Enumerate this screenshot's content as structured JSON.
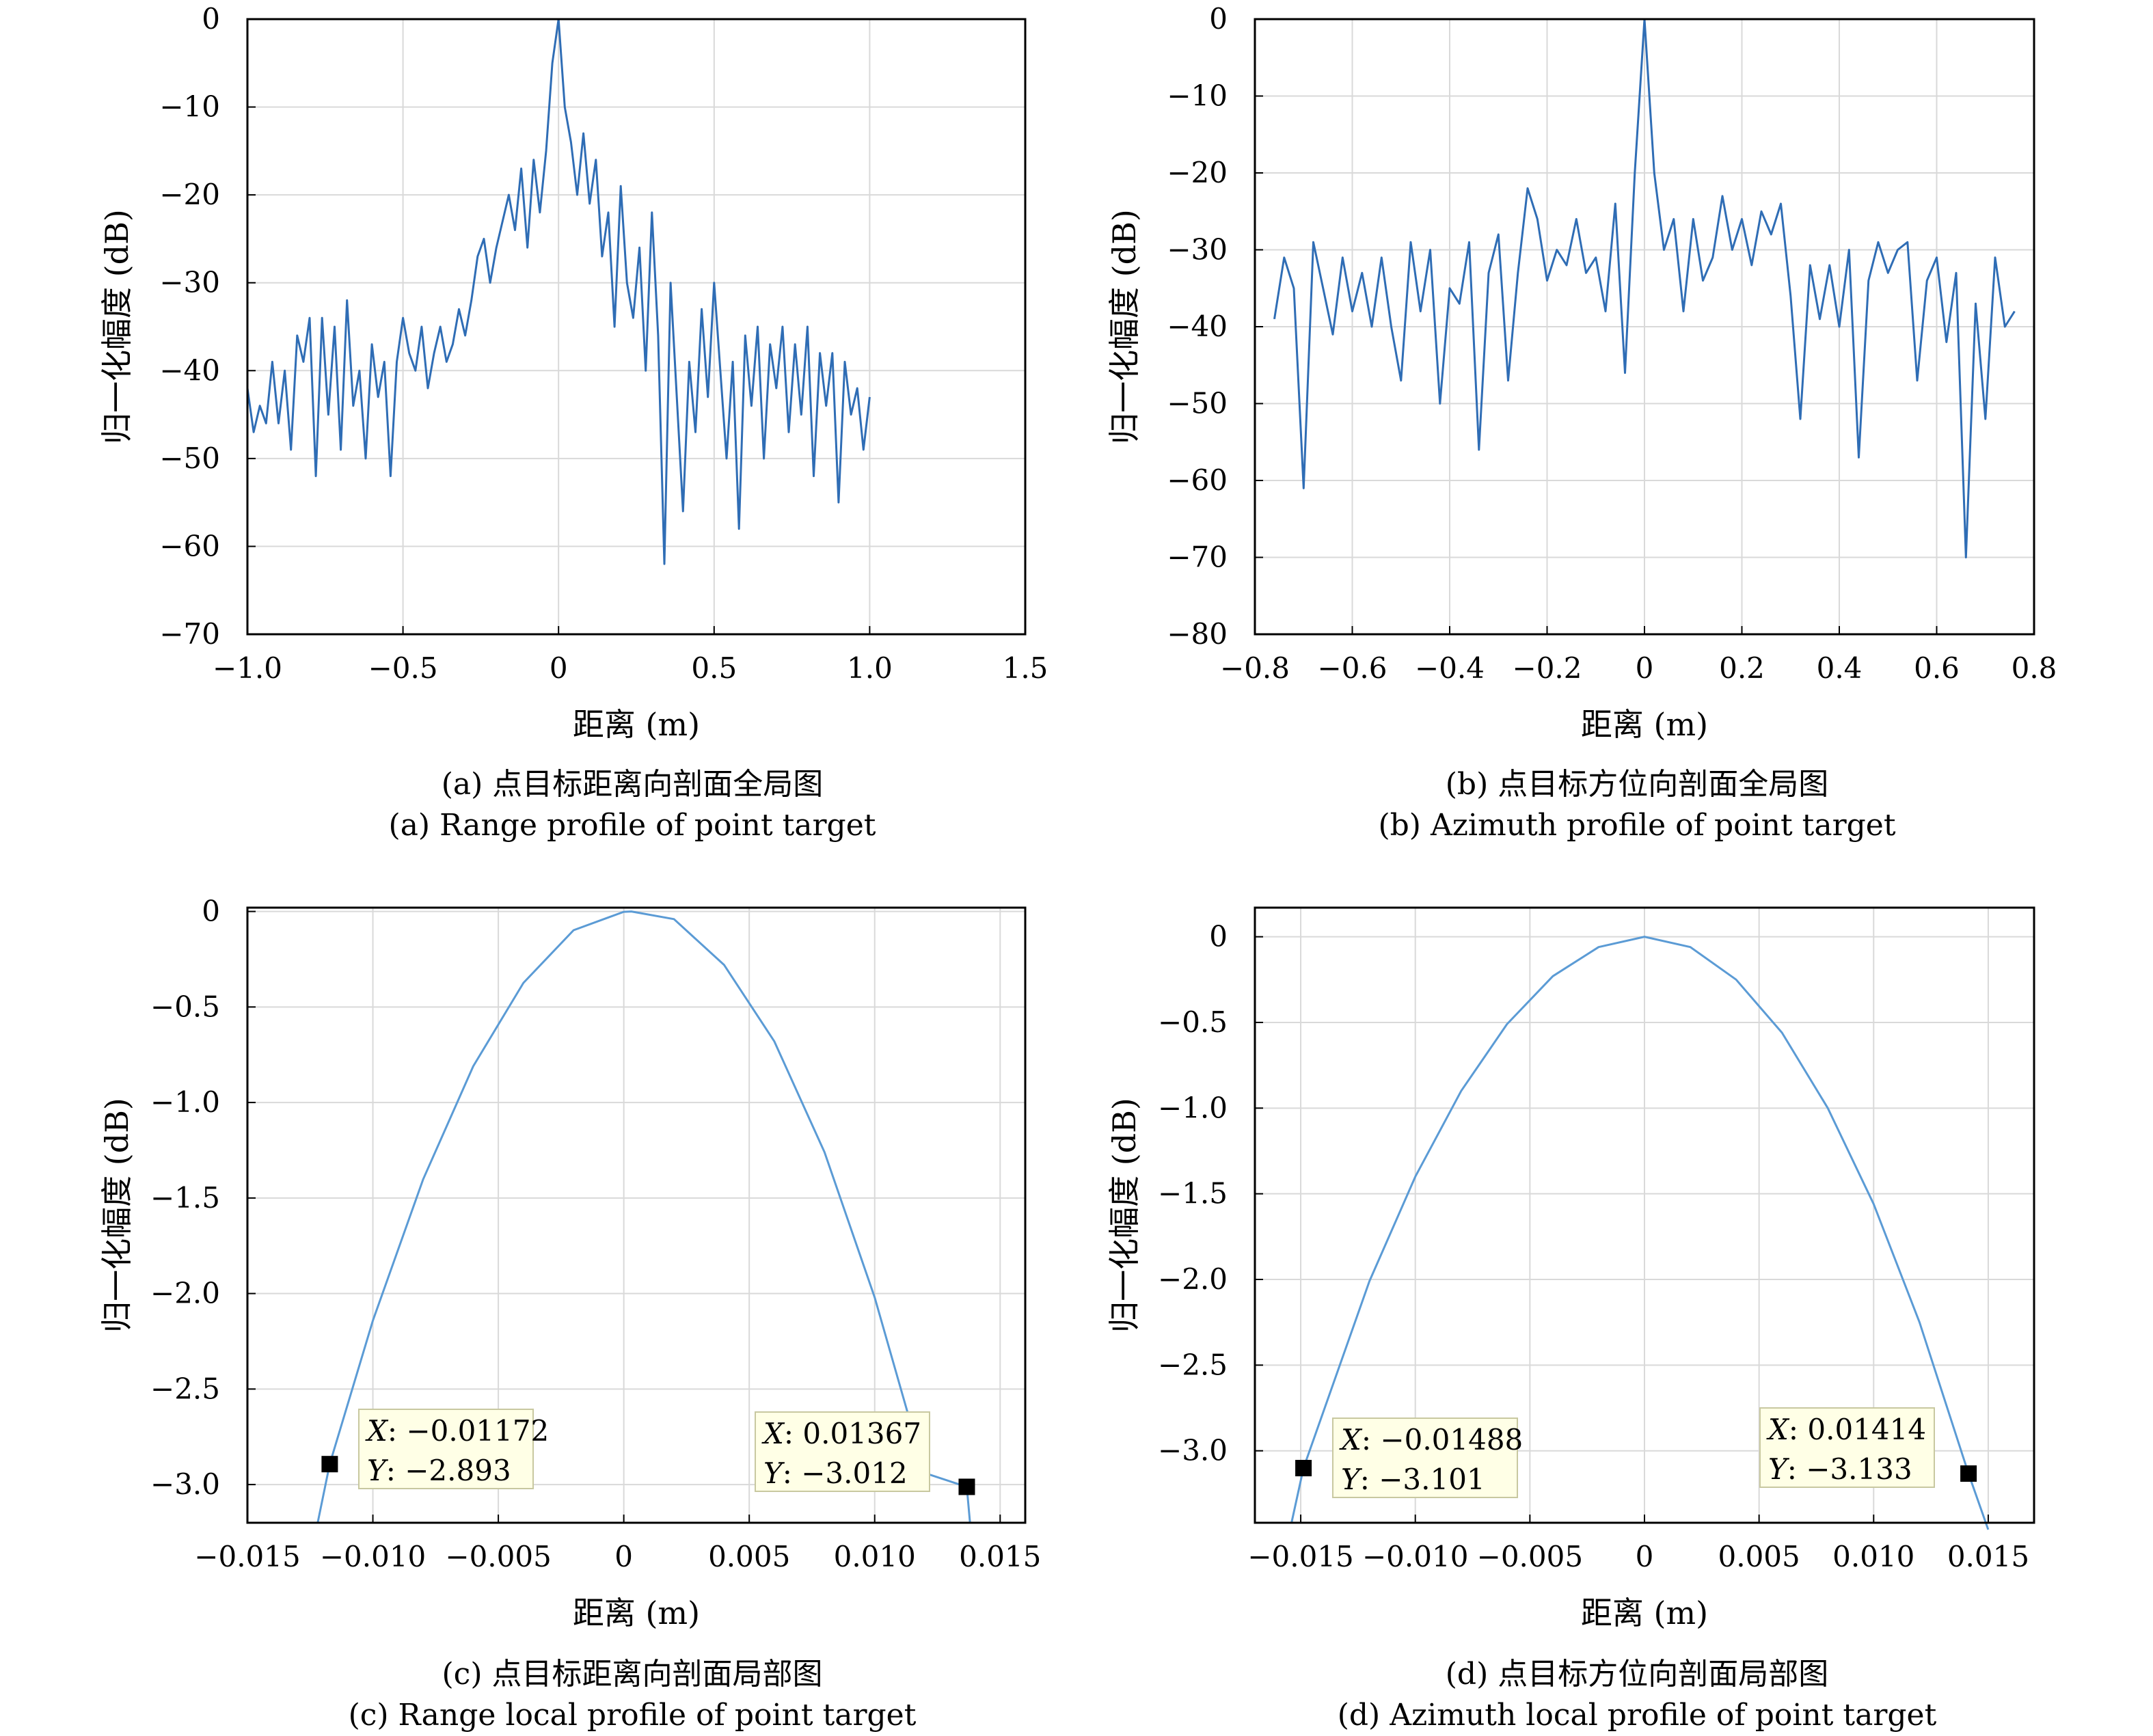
{
  "chart_data": [
    {
      "type": "line",
      "xlabel": "距离 (m)",
      "ylabel": "归一化幅度 (dB)",
      "xlim": [
        -1.0,
        1.5
      ],
      "ylim": [
        -70,
        0
      ],
      "xticks": [
        -1.0,
        -0.5,
        0,
        0.5,
        1.0,
        1.5
      ],
      "xtick_labels": [
        "−1.0",
        "−0.5",
        "0",
        "0.5",
        "1.0",
        "1.5"
      ],
      "yticks": [
        0,
        -10,
        -20,
        -30,
        -40,
        -50,
        -60,
        -70
      ],
      "ytick_labels": [
        "0",
        "−10",
        "−20",
        "−30",
        "−40",
        "−50",
        "−60",
        "−70"
      ],
      "grid": true,
      "caption_cn": "(a) 点目标距离向剖面全局图",
      "caption_en": "(a) Range profile of point target",
      "series": [
        {
          "color": "#2f6db5",
          "x": [
            -1.0,
            -0.98,
            -0.96,
            -0.94,
            -0.92,
            -0.9,
            -0.88,
            -0.86,
            -0.84,
            -0.82,
            -0.8,
            -0.78,
            -0.76,
            -0.74,
            -0.72,
            -0.7,
            -0.68,
            -0.66,
            -0.64,
            -0.62,
            -0.6,
            -0.58,
            -0.56,
            -0.54,
            -0.52,
            -0.5,
            -0.48,
            -0.46,
            -0.44,
            -0.42,
            -0.4,
            -0.38,
            -0.36,
            -0.34,
            -0.32,
            -0.3,
            -0.28,
            -0.26,
            -0.24,
            -0.22,
            -0.2,
            -0.18,
            -0.16,
            -0.14,
            -0.12,
            -0.1,
            -0.08,
            -0.06,
            -0.04,
            -0.02,
            0,
            0.02,
            0.04,
            0.06,
            0.08,
            0.1,
            0.12,
            0.14,
            0.16,
            0.18,
            0.2,
            0.22,
            0.24,
            0.26,
            0.28,
            0.3,
            0.32,
            0.34,
            0.36,
            0.38,
            0.4,
            0.42,
            0.44,
            0.46,
            0.48,
            0.5,
            0.52,
            0.54,
            0.56,
            0.58,
            0.6,
            0.62,
            0.64,
            0.66,
            0.68,
            0.7,
            0.72,
            0.74,
            0.76,
            0.78,
            0.8,
            0.82,
            0.84,
            0.86,
            0.88,
            0.9,
            0.92,
            0.94,
            0.96,
            0.98,
            1.0
          ],
          "y": [
            -42,
            -47,
            -44,
            -46,
            -39,
            -46,
            -40,
            -49,
            -36,
            -39,
            -34,
            -52,
            -34,
            -45,
            -35,
            -49,
            -32,
            -44,
            -40,
            -50,
            -37,
            -43,
            -39,
            -52,
            -39,
            -34,
            -38,
            -40,
            -35,
            -42,
            -38,
            -35,
            -39,
            -37,
            -33,
            -36,
            -32,
            -27,
            -25,
            -30,
            -26,
            -23,
            -20,
            -24,
            -17,
            -26,
            -16,
            -22,
            -15,
            -5,
            0,
            -10,
            -14,
            -20,
            -13,
            -21,
            -16,
            -27,
            -22,
            -35,
            -19,
            -30,
            -34,
            -26,
            -40,
            -22,
            -36,
            -62,
            -30,
            -43,
            -56,
            -39,
            -47,
            -33,
            -43,
            -30,
            -40,
            -50,
            -39,
            -58,
            -36,
            -44,
            -35,
            -50,
            -37,
            -42,
            -35,
            -47,
            -37,
            -45,
            -35,
            -52,
            -38,
            -44,
            -38,
            -55,
            -39,
            -45,
            -42,
            -49,
            -43
          ]
        }
      ]
    },
    {
      "type": "line",
      "xlabel": "距离 (m)",
      "ylabel": "归一化幅度 (dB)",
      "xlim": [
        -0.8,
        0.8
      ],
      "ylim": [
        -80,
        0
      ],
      "xticks": [
        -0.8,
        -0.6,
        -0.4,
        -0.2,
        0,
        0.2,
        0.4,
        0.6,
        0.8
      ],
      "xtick_labels": [
        "−0.8",
        "−0.6",
        "−0.4",
        "−0.2",
        "0",
        "0.2",
        "0.4",
        "0.6",
        "0.8"
      ],
      "yticks": [
        0,
        -10,
        -20,
        -30,
        -40,
        -50,
        -60,
        -70,
        -80
      ],
      "ytick_labels": [
        "0",
        "−10",
        "−20",
        "−30",
        "−40",
        "−50",
        "−60",
        "−70",
        "−80"
      ],
      "grid": true,
      "caption_cn": "(b) 点目标方位向剖面全局图",
      "caption_en": "(b) Azimuth profile of point target",
      "series": [
        {
          "color": "#2f6db5",
          "x": [
            -0.76,
            -0.74,
            -0.72,
            -0.7,
            -0.68,
            -0.66,
            -0.64,
            -0.62,
            -0.6,
            -0.58,
            -0.56,
            -0.54,
            -0.52,
            -0.5,
            -0.48,
            -0.46,
            -0.44,
            -0.42,
            -0.4,
            -0.38,
            -0.36,
            -0.34,
            -0.32,
            -0.3,
            -0.28,
            -0.26,
            -0.24,
            -0.22,
            -0.2,
            -0.18,
            -0.16,
            -0.14,
            -0.12,
            -0.1,
            -0.08,
            -0.06,
            -0.04,
            -0.02,
            0,
            0.02,
            0.04,
            0.06,
            0.08,
            0.1,
            0.12,
            0.14,
            0.16,
            0.18,
            0.2,
            0.22,
            0.24,
            0.26,
            0.28,
            0.3,
            0.32,
            0.34,
            0.36,
            0.38,
            0.4,
            0.42,
            0.44,
            0.46,
            0.48,
            0.5,
            0.52,
            0.54,
            0.56,
            0.58,
            0.6,
            0.62,
            0.64,
            0.66,
            0.68,
            0.7,
            0.72,
            0.74,
            0.76
          ],
          "y": [
            -39,
            -31,
            -35,
            -61,
            -29,
            -35,
            -41,
            -31,
            -38,
            -33,
            -40,
            -31,
            -40,
            -47,
            -29,
            -38,
            -30,
            -50,
            -35,
            -37,
            -29,
            -56,
            -33,
            -28,
            -47,
            -33,
            -22,
            -26,
            -34,
            -30,
            -32,
            -26,
            -33,
            -31,
            -38,
            -24,
            -46,
            -20,
            0,
            -20,
            -30,
            -26,
            -38,
            -26,
            -34,
            -31,
            -23,
            -30,
            -26,
            -32,
            -25,
            -28,
            -24,
            -36,
            -52,
            -32,
            -39,
            -32,
            -40,
            -30,
            -57,
            -34,
            -29,
            -33,
            -30,
            -29,
            -47,
            -34,
            -31,
            -42,
            -33,
            -70,
            -37,
            -52,
            -31,
            -40,
            -38
          ]
        }
      ]
    },
    {
      "type": "line",
      "xlabel": "距离 (m)",
      "ylabel": "归一化幅度 (dB)",
      "xlim": [
        -0.015,
        0.016
      ],
      "ylim": [
        -3.2,
        0.02
      ],
      "xticks": [
        -0.015,
        -0.01,
        -0.005,
        0,
        0.005,
        0.01,
        0.015
      ],
      "xtick_labels": [
        "−0.015",
        "−0.010",
        "−0.005",
        "0",
        "0.005",
        "0.010",
        "0.015"
      ],
      "yticks": [
        0,
        -0.5,
        -1.0,
        -1.5,
        -2.0,
        -2.5,
        -3.0
      ],
      "ytick_labels": [
        "0",
        "−0.5",
        "−1.0",
        "−1.5",
        "−2.0",
        "−2.5",
        "−3.0"
      ],
      "grid": true,
      "caption_cn": "(c) 点目标距离向剖面局部图",
      "caption_en": "(c) Range local profile of point target",
      "series": [
        {
          "color": "#5b9bd5",
          "peak_x": 0.0003,
          "peak_y": 0,
          "curvature": 0.0,
          "x": [
            -0.0122,
            -0.01172,
            -0.01,
            -0.008,
            -0.006,
            -0.004,
            -0.002,
            0,
            0.0003,
            0.002,
            0.004,
            0.006,
            0.008,
            0.01,
            0.012,
            0.01367,
            0.0138
          ],
          "y": [
            -3.2,
            -2.893,
            -2.142,
            -1.403,
            -0.81,
            -0.374,
            -0.098,
            -0.002,
            0,
            -0.04,
            -0.28,
            -0.68,
            -1.26,
            -2.02,
            -2.94,
            -3.012,
            -3.2
          ]
        }
      ],
      "markers": [
        {
          "x": -0.01172,
          "y": -2.893,
          "x_label": "X",
          "x_text": ": −0.01172",
          "y_label": "Y",
          "y_text": ": −2.893"
        },
        {
          "x": 0.01367,
          "y": -3.012,
          "x_label": "X",
          "x_text": ": 0.01367",
          "y_label": "Y",
          "y_text": ": −3.012"
        }
      ]
    },
    {
      "type": "line",
      "xlabel": "距离 (m)",
      "ylabel": "归一化幅度 (dB)",
      "xlim": [
        -0.017,
        0.017
      ],
      "ylim": [
        -3.42,
        0.17
      ],
      "xticks": [
        -0.015,
        -0.01,
        -0.005,
        0,
        0.005,
        0.01,
        0.015
      ],
      "xtick_labels": [
        "−0.015",
        "−0.010",
        "−0.005",
        "0",
        "0.005",
        "0.010",
        "0.015"
      ],
      "yticks": [
        0,
        -0.5,
        -1.0,
        -1.5,
        -2.0,
        -2.5,
        -3.0
      ],
      "ytick_labels": [
        "0",
        "−0.5",
        "−1.0",
        "−1.5",
        "−2.0",
        "−2.5",
        "−3.0"
      ],
      "grid": true,
      "caption_cn": "(d) 点目标方位向剖面局部图",
      "caption_en": "(d) Azimuth local profile of point target",
      "series": [
        {
          "color": "#5b9bd5",
          "x": [
            -0.0154,
            -0.01488,
            -0.012,
            -0.01,
            -0.008,
            -0.006,
            -0.004,
            -0.002,
            0,
            0.002,
            0.004,
            0.006,
            0.008,
            0.01,
            0.012,
            0.01414,
            0.015
          ],
          "y": [
            -3.42,
            -3.101,
            -2.01,
            -1.4,
            -0.9,
            -0.51,
            -0.23,
            -0.06,
            0,
            -0.06,
            -0.25,
            -0.56,
            -1.0,
            -1.56,
            -2.25,
            -3.133,
            -3.46
          ]
        }
      ],
      "markers": [
        {
          "x": -0.01488,
          "y": -3.101,
          "x_label": "X",
          "x_text": ": −0.01488",
          "y_label": "Y",
          "y_text": ": −3.101"
        },
        {
          "x": 0.01414,
          "y": -3.133,
          "x_label": "X",
          "x_text": ": 0.01414",
          "y_label": "Y",
          "y_text": ": −3.133"
        }
      ]
    }
  ]
}
